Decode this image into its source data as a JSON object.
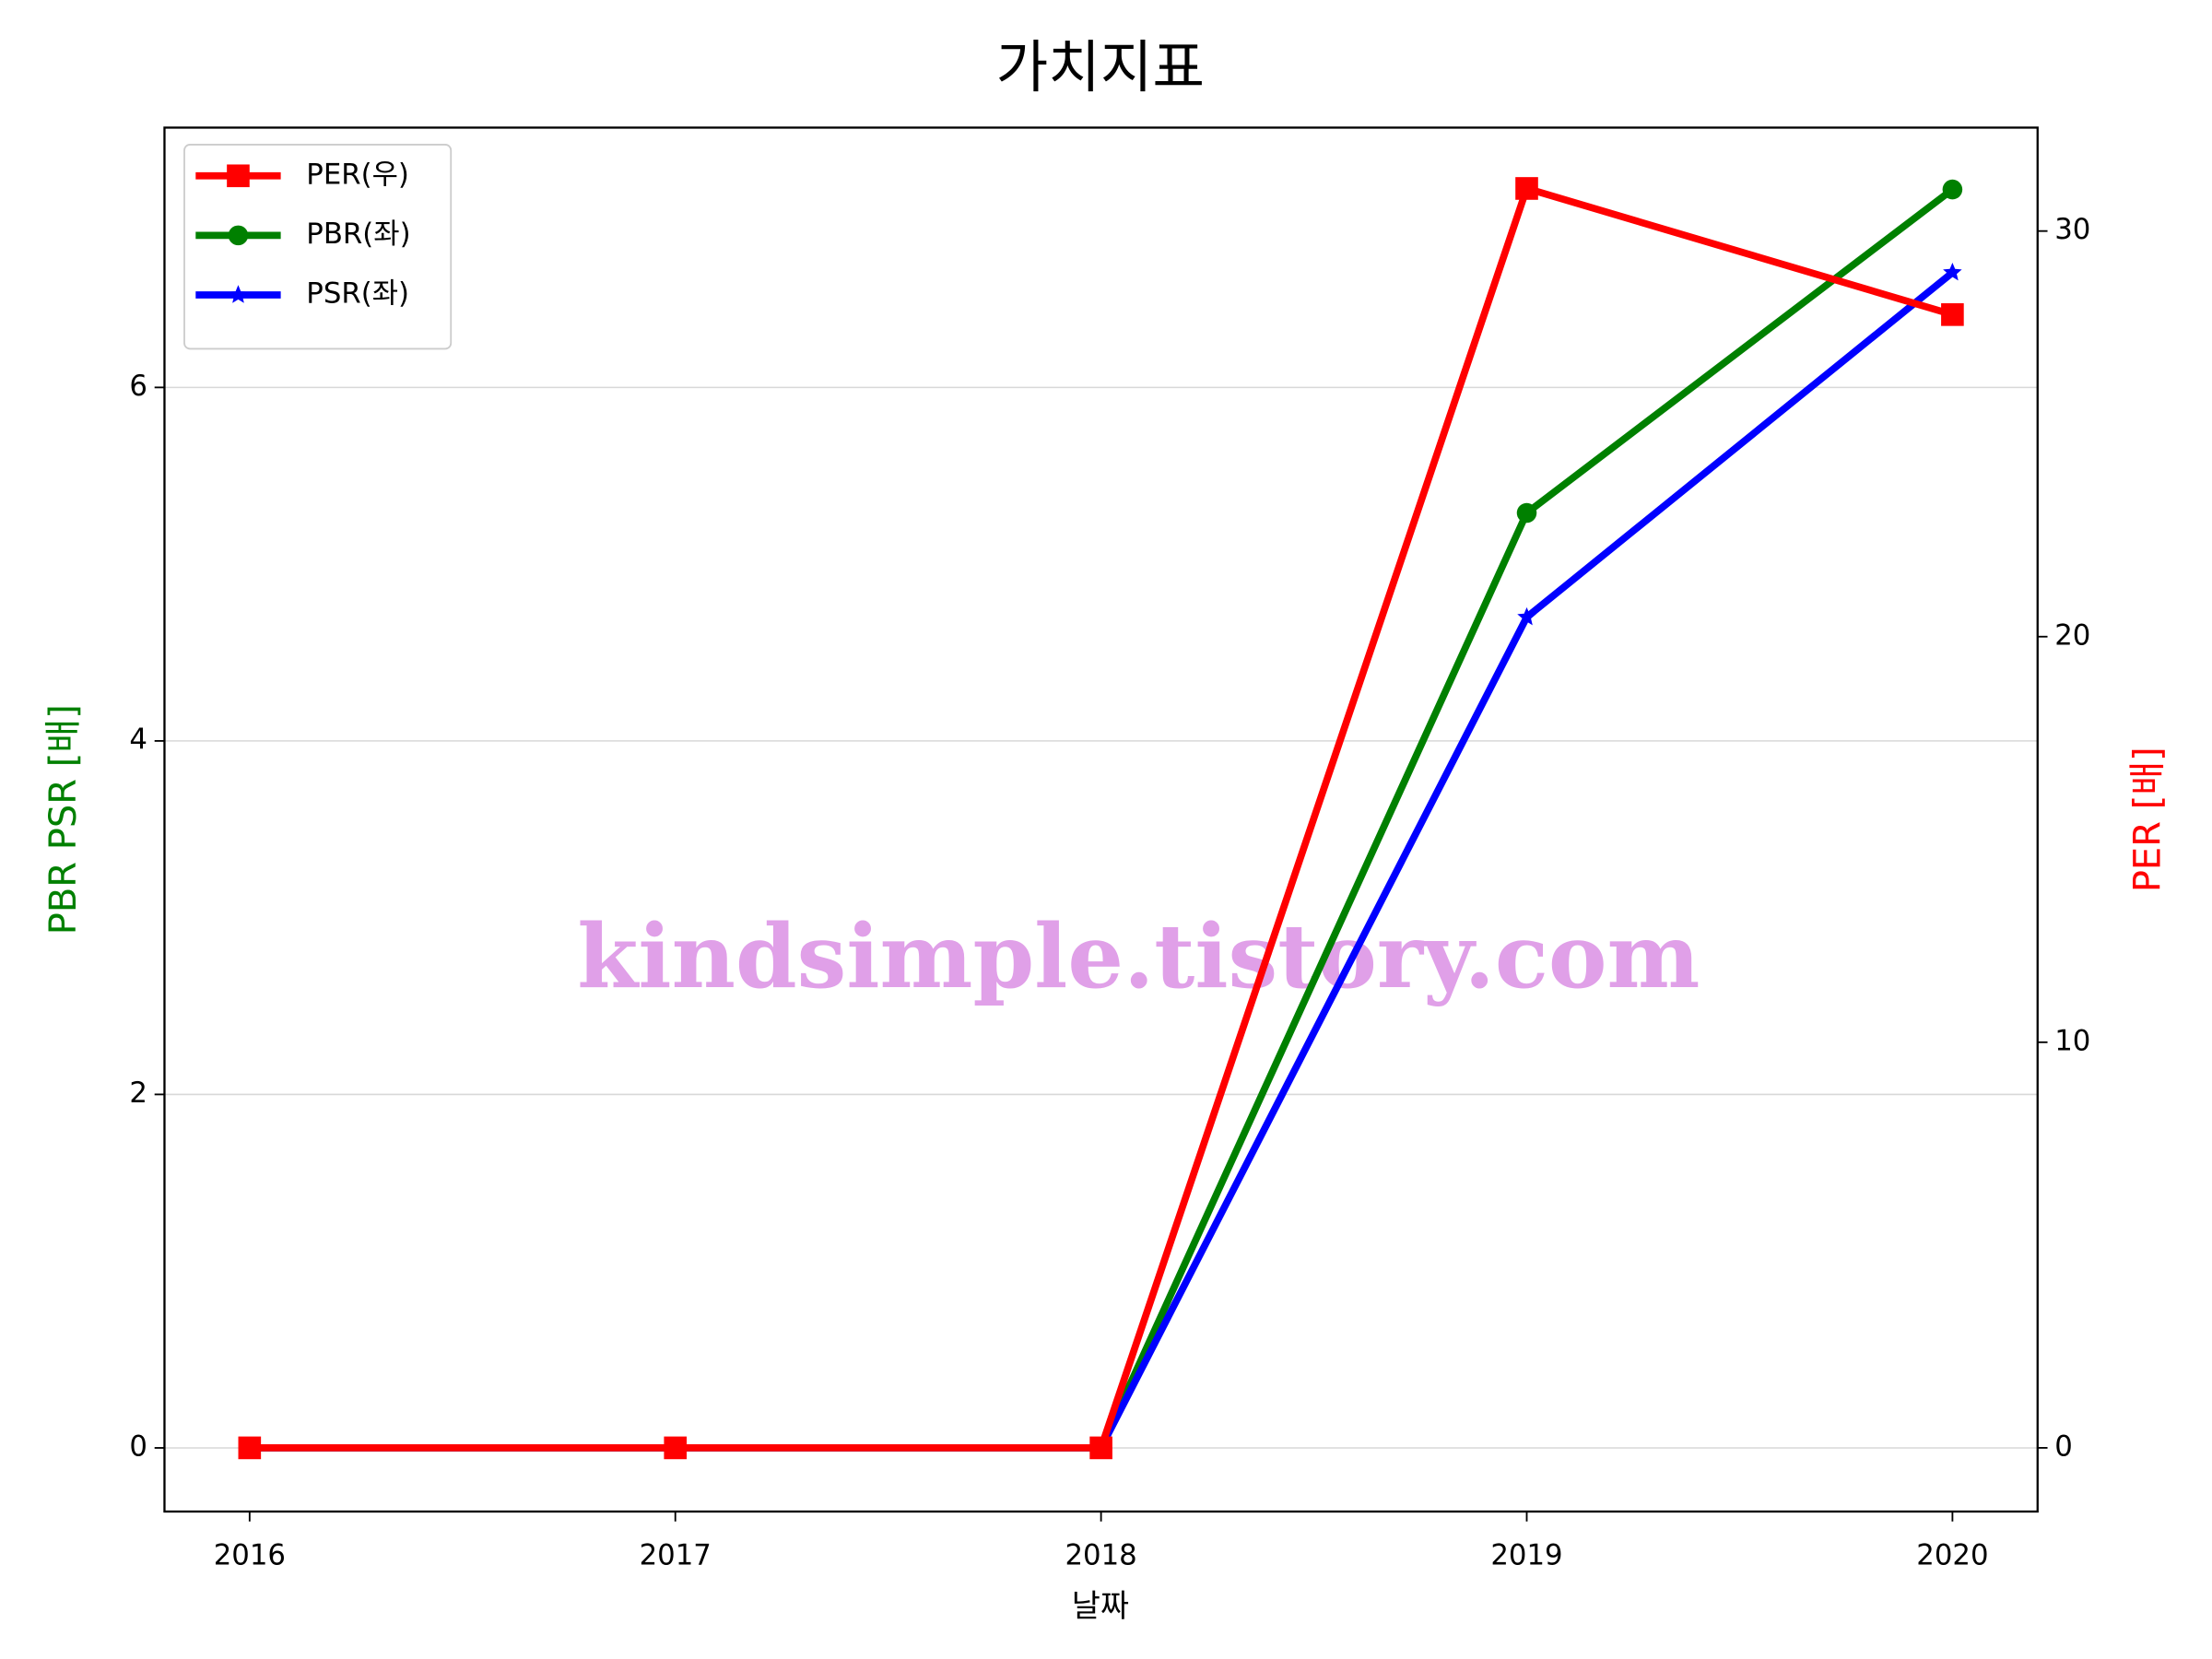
{
  "chart_data": {
    "type": "line",
    "title": "가치지표",
    "x_label": "날짜",
    "y_label": "PBR PSR [배]",
    "y2_label": "PER [배]",
    "y_label_color": "#008000",
    "y2_label_color": "#ff0000",
    "x": [
      2016,
      2017,
      2018,
      2019,
      2020
    ],
    "xlim": [
      2015.8,
      2020.2
    ],
    "xticks": [
      2016,
      2017,
      2018,
      2019,
      2020
    ],
    "ylim": [
      -0.36,
      7.47
    ],
    "yticks": [
      0,
      2,
      4,
      6
    ],
    "y2lim": [
      -1.57,
      32.55
    ],
    "y2ticks": [
      0,
      10,
      20,
      30
    ],
    "grid": true,
    "legend": "upper left",
    "series": [
      {
        "name": "PER(우)",
        "color": "#ff0000",
        "marker": "square",
        "axis": "y2",
        "values": [
          0,
          0,
          0,
          31.05,
          27.94
        ]
      },
      {
        "name": "PBR(좌)",
        "color": "#008000",
        "marker": "circle",
        "values": [
          0,
          0,
          0,
          5.29,
          7.12
        ]
      },
      {
        "name": "PSR(좌)",
        "color": "#0000ff",
        "marker": "star",
        "values": [
          0,
          0,
          0,
          4.7,
          6.65
        ]
      }
    ],
    "watermark": "kindsimple.tistory.com"
  }
}
